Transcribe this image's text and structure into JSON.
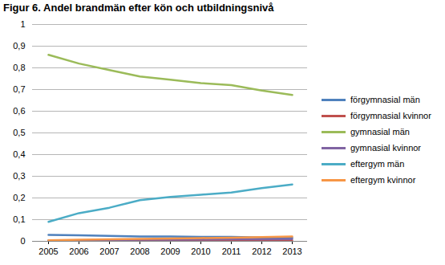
{
  "chart_data": {
    "type": "line",
    "title": "Figur 6. Andel brandmän efter kön och utbildningsnivå",
    "categories": [
      "2005",
      "2006",
      "2007",
      "2008",
      "2009",
      "2010",
      "2011",
      "2012",
      "2013"
    ],
    "series": [
      {
        "name": "förgymnasial män",
        "color": "#4f81bd",
        "values": [
          0.03,
          0.028,
          0.025,
          0.022,
          0.022,
          0.02,
          0.02,
          0.018,
          0.017
        ]
      },
      {
        "name": "förgymnasial kvinnor",
        "color": "#c0504d",
        "values": [
          0.002,
          0.002,
          0.002,
          0.002,
          0.002,
          0.002,
          0.002,
          0.002,
          0.002
        ]
      },
      {
        "name": "gymnasial män",
        "color": "#9bbb59",
        "values": [
          0.86,
          0.82,
          0.79,
          0.76,
          0.745,
          0.73,
          0.72,
          0.695,
          0.675
        ]
      },
      {
        "name": "gymnasial kvinnor",
        "color": "#8064a2",
        "values": [
          0.005,
          0.005,
          0.006,
          0.007,
          0.007,
          0.008,
          0.009,
          0.009,
          0.01
        ]
      },
      {
        "name": "eftergym män",
        "color": "#4bacc6",
        "values": [
          0.09,
          0.13,
          0.155,
          0.19,
          0.205,
          0.215,
          0.225,
          0.245,
          0.262
        ]
      },
      {
        "name": "eftergym kvinnor",
        "color": "#f79646",
        "values": [
          0.005,
          0.007,
          0.009,
          0.011,
          0.013,
          0.015,
          0.017,
          0.019,
          0.022
        ]
      }
    ],
    "ylim": [
      0,
      1
    ],
    "yticks": [
      0,
      {
        "value": 0.1,
        "label": "0,1"
      },
      {
        "value": 0.2,
        "label": "0,2"
      },
      {
        "value": 0.3,
        "label": "0,3"
      },
      {
        "value": 0.4,
        "label": "0,4"
      },
      {
        "value": 0.5,
        "label": "0,5"
      },
      {
        "value": 0.6,
        "label": "0,6"
      },
      {
        "value": 0.7,
        "label": "0,7"
      },
      {
        "value": 0.8,
        "label": "0,8"
      },
      {
        "value": 0.9,
        "label": "0,9"
      },
      1
    ],
    "grid": true,
    "legend": "right"
  }
}
